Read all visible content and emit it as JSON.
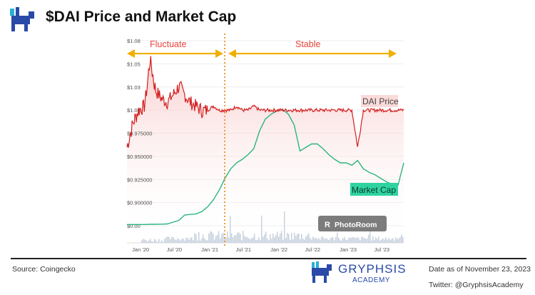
{
  "header": {
    "title": "$DAI Price and Market Cap"
  },
  "footer": {
    "source": "Source: Coingecko",
    "brand_name": "GRYPHSIS",
    "brand_sub": "ACADEMY",
    "date": "Date as of November 23, 2023",
    "twitter": "Twitter: @GryphsisAcademy"
  },
  "watermark": "PhotoRoom",
  "colors": {
    "price": "#d42020",
    "market_cap": "#2bb57f",
    "annotation": "#e8443c",
    "arrow": "#f0b000",
    "volume": "#c5cfdc",
    "brand": "#2a4aa8"
  },
  "chart_data": {
    "type": "line",
    "x_tick_labels": [
      "Jan '20",
      "Jul '20",
      "Jan '21",
      "Jul '21",
      "Jan '22",
      "Jul '22",
      "Jan '23",
      "Jul '23"
    ],
    "y_tick_labels": [
      "$1.08",
      "$1.05",
      "$1.03",
      "$1.00",
      "$0.975000",
      "$0.950000",
      "$0.925000",
      "$0.900000",
      "$0.00"
    ],
    "grid": true,
    "annotations": {
      "left_period": "Fluctuate",
      "right_period": "Stable",
      "price_label": "DAI Price",
      "mcap_label": "Market Cap",
      "divider_date": "2021-05"
    },
    "x": [
      "2019-11",
      "2019-12",
      "2020-01",
      "2020-02",
      "2020-03",
      "2020-04",
      "2020-05",
      "2020-06",
      "2020-07",
      "2020-08",
      "2020-09",
      "2020-10",
      "2020-11",
      "2020-12",
      "2021-01",
      "2021-02",
      "2021-03",
      "2021-04",
      "2021-05",
      "2021-06",
      "2021-07",
      "2021-08",
      "2021-09",
      "2021-10",
      "2021-11",
      "2021-12",
      "2022-01",
      "2022-02",
      "2022-03",
      "2022-04",
      "2022-05",
      "2022-06",
      "2022-07",
      "2022-08",
      "2022-09",
      "2022-10",
      "2022-11",
      "2022-12",
      "2023-01",
      "2023-02",
      "2023-03",
      "2023-04",
      "2023-05",
      "2023-06",
      "2023-07",
      "2023-08",
      "2023-09",
      "2023-10",
      "2023-11"
    ],
    "series": [
      {
        "name": "DAI Price",
        "unit": "USD",
        "values": [
          0.96,
          0.985,
          1.0,
          1.005,
          1.055,
          1.025,
          1.015,
          1.01,
          1.02,
          1.03,
          1.02,
          1.01,
          1.005,
          1.0,
          1.0,
          1.005,
          1.0,
          1.0,
          1.0,
          1.005,
          1.0,
          1.0,
          1.005,
          1.0,
          1.0,
          1.0,
          1.0,
          1.0,
          1.0,
          1.0,
          1.0,
          1.0,
          1.0,
          1.0,
          1.0,
          1.0,
          1.0,
          1.0,
          1.0,
          1.0,
          0.96,
          1.0,
          1.0,
          1.0,
          1.0,
          1.0,
          1.0,
          1.0,
          1.0
        ]
      },
      {
        "name": "Market Cap",
        "unit": "USD billions",
        "values": [
          0.1,
          0.1,
          0.1,
          0.1,
          0.12,
          0.12,
          0.13,
          0.15,
          0.3,
          0.45,
          0.9,
          0.95,
          1.0,
          1.2,
          1.6,
          2.2,
          3.0,
          4.0,
          4.8,
          5.3,
          5.6,
          6.0,
          6.5,
          8.0,
          9.0,
          9.4,
          9.7,
          9.8,
          9.4,
          8.5,
          6.3,
          6.6,
          6.9,
          6.9,
          6.5,
          6.0,
          5.6,
          5.3,
          5.3,
          5.1,
          5.5,
          4.8,
          4.5,
          4.3,
          4.0,
          3.7,
          3.5,
          3.4,
          5.3
        ]
      }
    ]
  }
}
